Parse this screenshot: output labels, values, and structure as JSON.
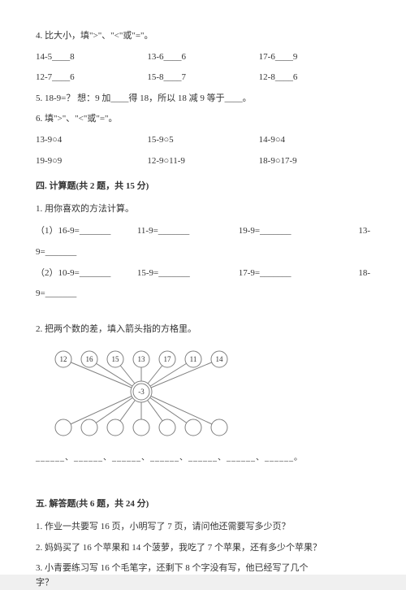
{
  "q4": {
    "title": "4. 比大小，填\">\"、\"<\"或\"=\"。",
    "r1": {
      "a": "14-5____8",
      "b": "13-6____6",
      "c": "17-6____9"
    },
    "r2": {
      "a": "12-7____6",
      "b": "15-8____7",
      "c": "12-8____6"
    }
  },
  "q5": {
    "text": "5. 18-9=？   想：9 加____得 18，所以 18 减 9 等于____。"
  },
  "q6": {
    "title": "6. 填\">\"、\"<\"或\"=\"。",
    "r1": {
      "a": "13-9○4",
      "b": "15-9○5",
      "c": "14-9○4"
    },
    "r2": {
      "a": "19-9○9",
      "b": "12-9○11-9",
      "c": "18-9○17-9"
    }
  },
  "sec4": {
    "head": "四. 计算题(共 2 题，共 15 分)",
    "q1": {
      "title": "1. 用你喜欢的方法计算。",
      "r1": {
        "a": "（1）16-9=_______",
        "b": "11-9=_______",
        "c": "19-9=_______",
        "d": "13-"
      },
      "r1b": "9=_______",
      "r2": {
        "a": "（2）10-9=_______",
        "b": "15-9=_______",
        "c": "17-9=_______",
        "d": "18-"
      },
      "r2b": "9=_______"
    },
    "q2": {
      "title": "2. 把两个数的差，填入箭头指的方格里。",
      "diagram": {
        "top_values": [
          "12",
          "16",
          "15",
          "13",
          "17",
          "11",
          "14"
        ],
        "center_label": "-3",
        "top_circle_fill": "#ffffff",
        "top_circle_stroke": "#808080",
        "center_circle_fill": "#ffffff",
        "center_circle_stroke": "#808080",
        "bottom_circle_fill": "#ffffff",
        "bottom_circle_stroke": "#808080",
        "line_color": "#808080",
        "text_color": "#333333",
        "font_size": 9
      },
      "answers_line": "______、______、______、______、______、______、______。"
    }
  },
  "sec5": {
    "head": "五. 解答题(共 6 题，共 24 分)",
    "q1": "1. 作业一共要写 16 页，小明写了 7 页，请问他还需要写多少页？",
    "q2": "2. 妈妈买了 16 个苹果和 14 个菠萝，我吃了 7 个苹果，还有多少个苹果？",
    "q3a": "3. 小青要练习写 16 个毛笔字，还剩下 8 个字没有写，他已经写了几个",
    "q3b": "字？"
  }
}
